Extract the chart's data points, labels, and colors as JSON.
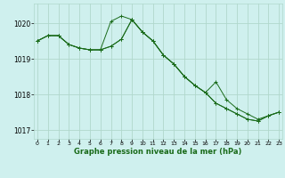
{
  "title": "Graphe pression niveau de la mer (hPa)",
  "bg_color": "#cff0ee",
  "grid_color": "#b0d8cc",
  "line_color": "#1a6b1a",
  "series": [
    [
      1019.5,
      1019.65,
      1019.65,
      1019.4,
      1019.3,
      1019.25,
      1019.25,
      1020.05,
      1020.2,
      1020.1,
      1019.75,
      1019.5,
      1019.1,
      1018.85,
      1018.5,
      1018.25,
      1018.05,
      1018.35,
      1017.85,
      1017.6,
      1017.45,
      1017.3,
      1017.4,
      1017.5
    ],
    [
      1019.5,
      1019.65,
      1019.65,
      1019.4,
      1019.3,
      1019.25,
      1019.25,
      1019.35,
      1019.55,
      1020.1,
      1019.75,
      1019.5,
      1019.1,
      1018.85,
      1018.5,
      1018.25,
      1018.05,
      1017.75,
      1017.6,
      1017.45,
      1017.3,
      1017.25,
      1017.4,
      1017.5
    ],
    [
      1019.5,
      1019.65,
      1019.65,
      1019.4,
      1019.3,
      1019.25,
      1019.25,
      1019.35,
      1019.55,
      1020.1,
      1019.75,
      1019.5,
      1019.1,
      1018.85,
      1018.5,
      1018.25,
      1018.05,
      1017.75,
      1017.6,
      1017.45,
      1017.3,
      1017.25,
      1017.4,
      1017.5
    ]
  ],
  "ylim": [
    1016.75,
    1020.55
  ],
  "yticks": [
    1017,
    1018,
    1019,
    1020
  ],
  "xlim": [
    -0.3,
    23.3
  ],
  "xticks": [
    0,
    1,
    2,
    3,
    4,
    5,
    6,
    7,
    8,
    9,
    10,
    11,
    12,
    13,
    14,
    15,
    16,
    17,
    18,
    19,
    20,
    21,
    22,
    23
  ]
}
